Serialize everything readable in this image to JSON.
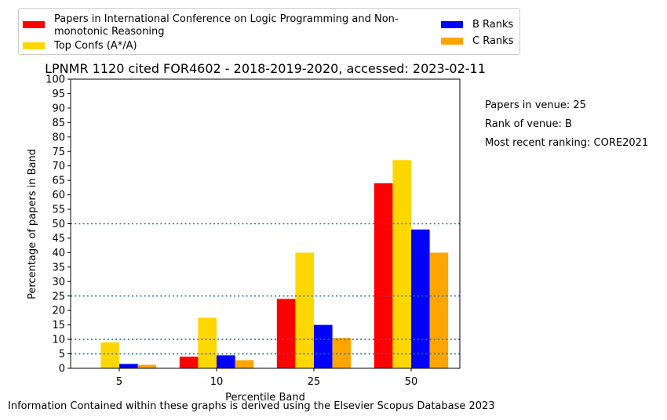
{
  "chart_data": {
    "type": "bar",
    "title": "LPNMR 1120 cited FOR4602 - 2018-2019-2020, accessed: 2023-02-11",
    "xlabel": "Percentile Band",
    "ylabel": "Percentage of papers in Band",
    "categories": [
      "5",
      "10",
      "25",
      "50"
    ],
    "ylim": [
      0,
      100
    ],
    "yticks": [
      "0",
      "5",
      "10",
      "15",
      "20",
      "25",
      "30",
      "35",
      "40",
      "45",
      "50",
      "55",
      "60",
      "65",
      "70",
      "75",
      "80",
      "85",
      "90",
      "95",
      "100"
    ],
    "series": [
      {
        "name": "Papers in International Conference on Logic Programming and Non-monotonic Reasoning",
        "color": "#ff0000",
        "values": [
          0,
          4,
          24,
          64
        ]
      },
      {
        "name": "Top Confs (A*/A)",
        "color": "#ffd700",
        "values": [
          9,
          17.5,
          40,
          72
        ]
      },
      {
        "name": "B Ranks",
        "color": "#0000ff",
        "values": [
          1.5,
          4.5,
          15,
          48
        ]
      },
      {
        "name": "C Ranks",
        "color": "#ffa500",
        "values": [
          1.2,
          2.8,
          10.5,
          40
        ]
      }
    ],
    "reference_lines": [
      5,
      10,
      25,
      50
    ],
    "reference_line_color": "#1f77b4",
    "grid": false,
    "legend_position": "top"
  },
  "legend": {
    "item_1": "Papers in International Conference on Logic Programming and Non-monotonic Reasoning",
    "item_2": "Top Confs (A*/A)",
    "item_3": "B Ranks",
    "item_4": "C Ranks"
  },
  "side_notes": {
    "papers_in_venue": "Papers in venue: 25",
    "rank_of_venue": "Rank of venue: B",
    "most_recent_ranking": "Most recent ranking: CORE2021"
  },
  "footer": "Information Contained within these graphs is derived using the Elsevier Scopus Database 2023"
}
